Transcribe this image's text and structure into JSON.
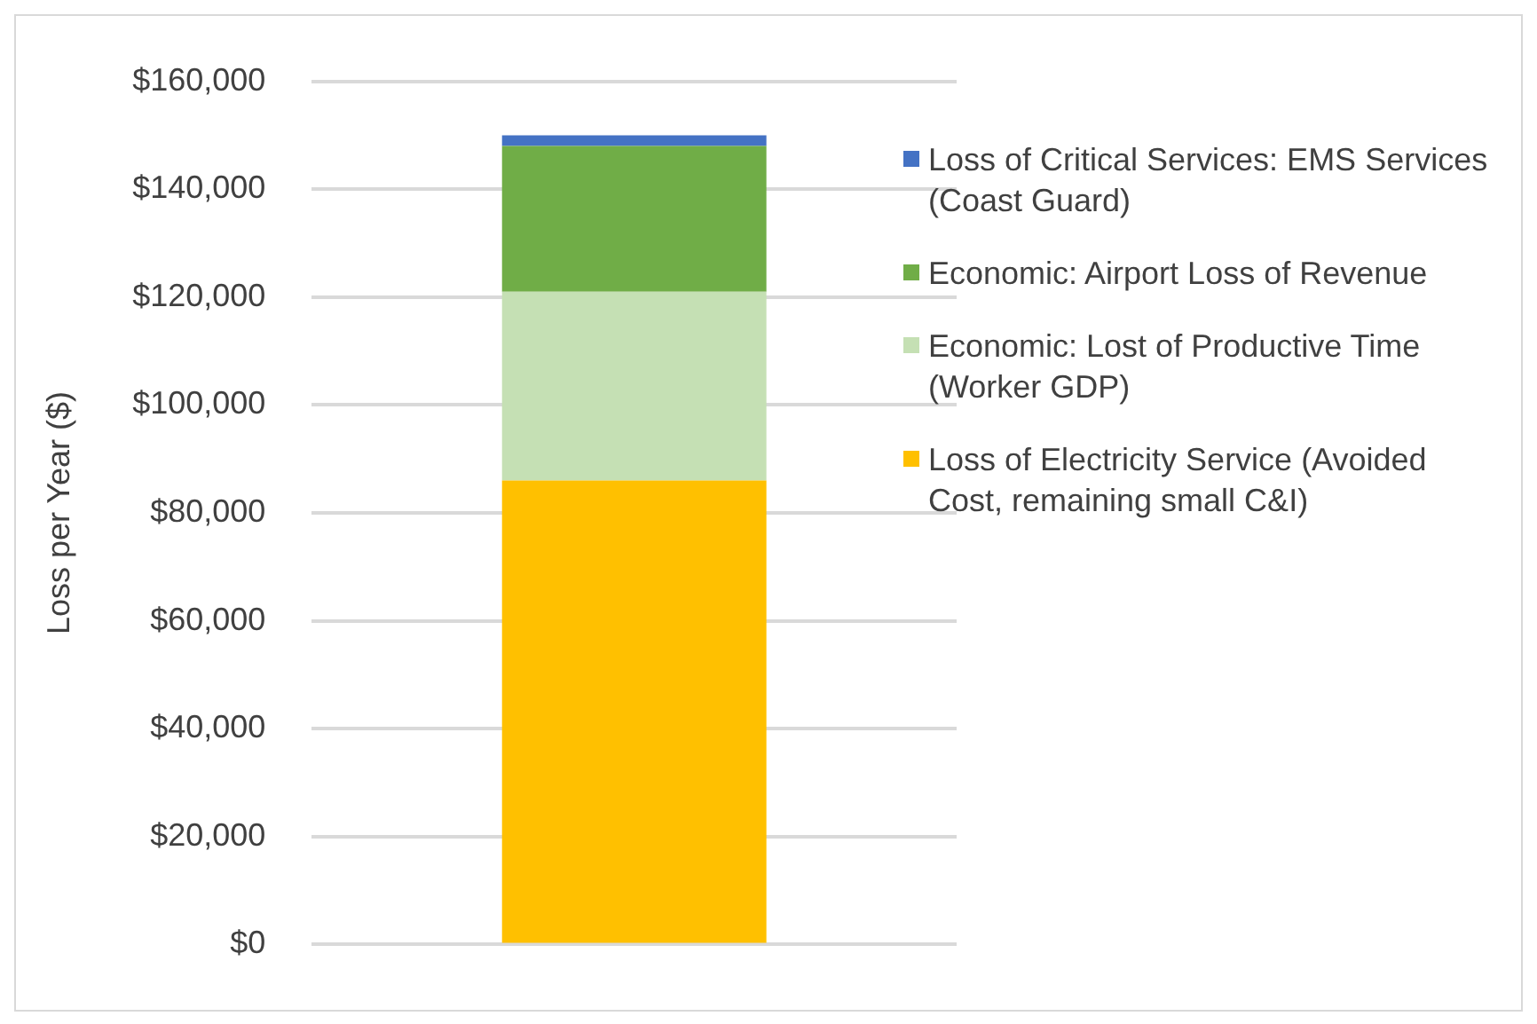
{
  "chart_data": {
    "type": "bar",
    "stacked": true,
    "ylabel": "Loss per Year ($)",
    "categories": [
      null
    ],
    "series": [
      {
        "name": "Loss of Electricity Service (Avoided Cost, remaining small C&I)",
        "color": "#ffc000",
        "values": [
          86000
        ]
      },
      {
        "name": "Economic: Lost of Productive Time (Worker GDP)",
        "color": "#c5e0b4",
        "values": [
          35000
        ]
      },
      {
        "name": "Economic: Airport Loss of Revenue",
        "color": "#70ad47",
        "values": [
          27000
        ]
      },
      {
        "name": "Loss of Critical Services: EMS Services (Coast Guard)",
        "color": "#4472c4",
        "values": [
          2000
        ]
      }
    ],
    "ylim": [
      0,
      160000
    ],
    "yticks": [
      {
        "value": 0,
        "label": "$0"
      },
      {
        "value": 20000,
        "label": "$20,000"
      },
      {
        "value": 40000,
        "label": "$40,000"
      },
      {
        "value": 60000,
        "label": "$60,000"
      },
      {
        "value": 80000,
        "label": "$80,000"
      },
      {
        "value": 100000,
        "label": "$100,000"
      },
      {
        "value": 120000,
        "label": "$120,000"
      },
      {
        "value": 140000,
        "label": "$140,000"
      },
      {
        "value": 160000,
        "label": "$160,000"
      }
    ],
    "grid": "y",
    "legend": "right"
  }
}
